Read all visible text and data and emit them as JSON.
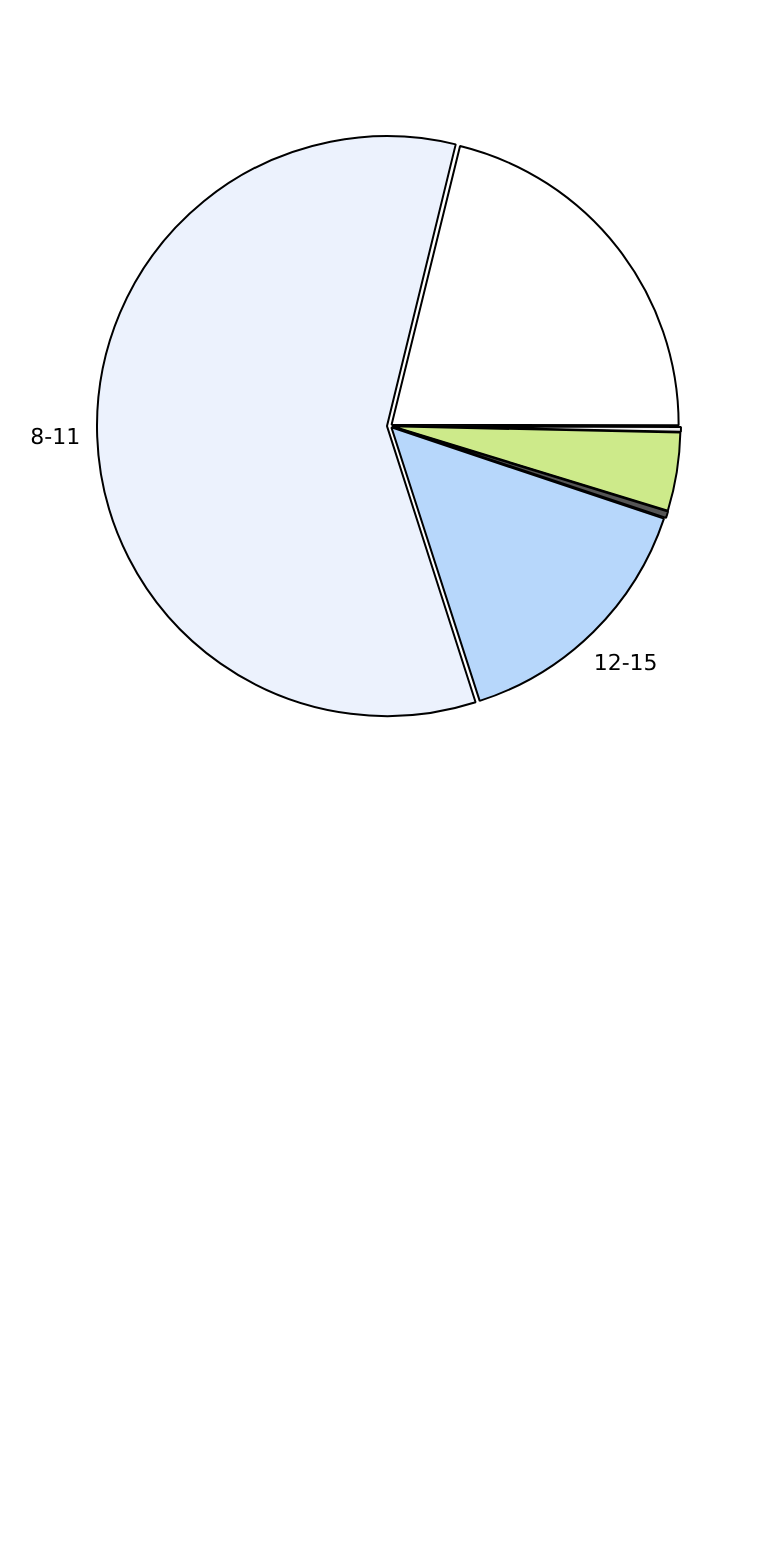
{
  "chart_data": {
    "type": "pie",
    "categories": [
      null,
      null,
      null,
      null,
      "12-15",
      "8-11"
    ],
    "values": [
      21.2,
      0.3,
      4.4,
      0.4,
      14.9,
      58.8
    ],
    "colors": [
      "#ffffff",
      "#f0f0f0",
      "#cdea8a",
      "#555555",
      "#b7d7fb",
      "#ecf2fd"
    ]
  }
}
